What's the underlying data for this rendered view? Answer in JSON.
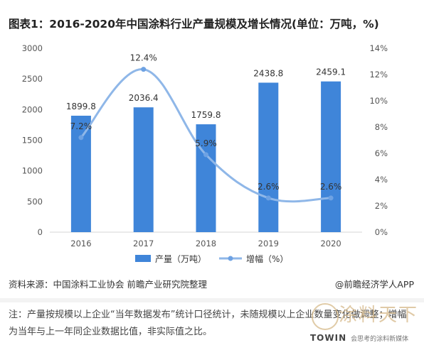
{
  "title": "图表1：2016-2020年中国涂料行业产量规模及增长情况(单位：万吨，%)",
  "chart_data": {
    "type": "bar+line",
    "categories": [
      "2016",
      "2017",
      "2018",
      "2019",
      "2020"
    ],
    "series": [
      {
        "name": "产量（万吨）",
        "type": "bar",
        "axis": "left",
        "values": [
          1899.8,
          2036.4,
          1759.8,
          2438.8,
          2459.1
        ],
        "color": "#3f85d9"
      },
      {
        "name": "增幅（%）",
        "type": "line",
        "axis": "right",
        "values": [
          7.2,
          12.4,
          5.9,
          2.6,
          2.6
        ],
        "color": "#8fb7e8"
      }
    ],
    "y_left": {
      "min": 0,
      "max": 3000,
      "ticks": [
        0,
        500,
        1000,
        1500,
        2000,
        2500,
        3000
      ]
    },
    "y_right": {
      "min": 0,
      "max": 14,
      "ticks": [
        "0%",
        "2%",
        "4%",
        "6%",
        "8%",
        "10%",
        "12%",
        "14%"
      ]
    },
    "bar_labels": [
      "1899.8",
      "2036.4",
      "1759.8",
      "2438.8",
      "2459.1"
    ],
    "line_labels": [
      "7.2%",
      "12.4%",
      "5.9%",
      "2.6%",
      "2.6%"
    ],
    "legend_position": "bottom"
  },
  "source": "资料来源：中国涂料工业协会 前瞻产业研究院整理",
  "attribution": "@前瞻经济学人APP",
  "note": "注：产量按规模以上企业“当年数据发布”统计口径统计，未随规模以上企业数量变化做调整；增幅为当年与上一年同企业数据比值，非实际值之比。",
  "watermark": {
    "chart_logo": "前瞻产业研究院",
    "brand_cn": "涂料天下",
    "brand_en": "TOWIN",
    "tagline": "会思考的涂料新媒体"
  }
}
